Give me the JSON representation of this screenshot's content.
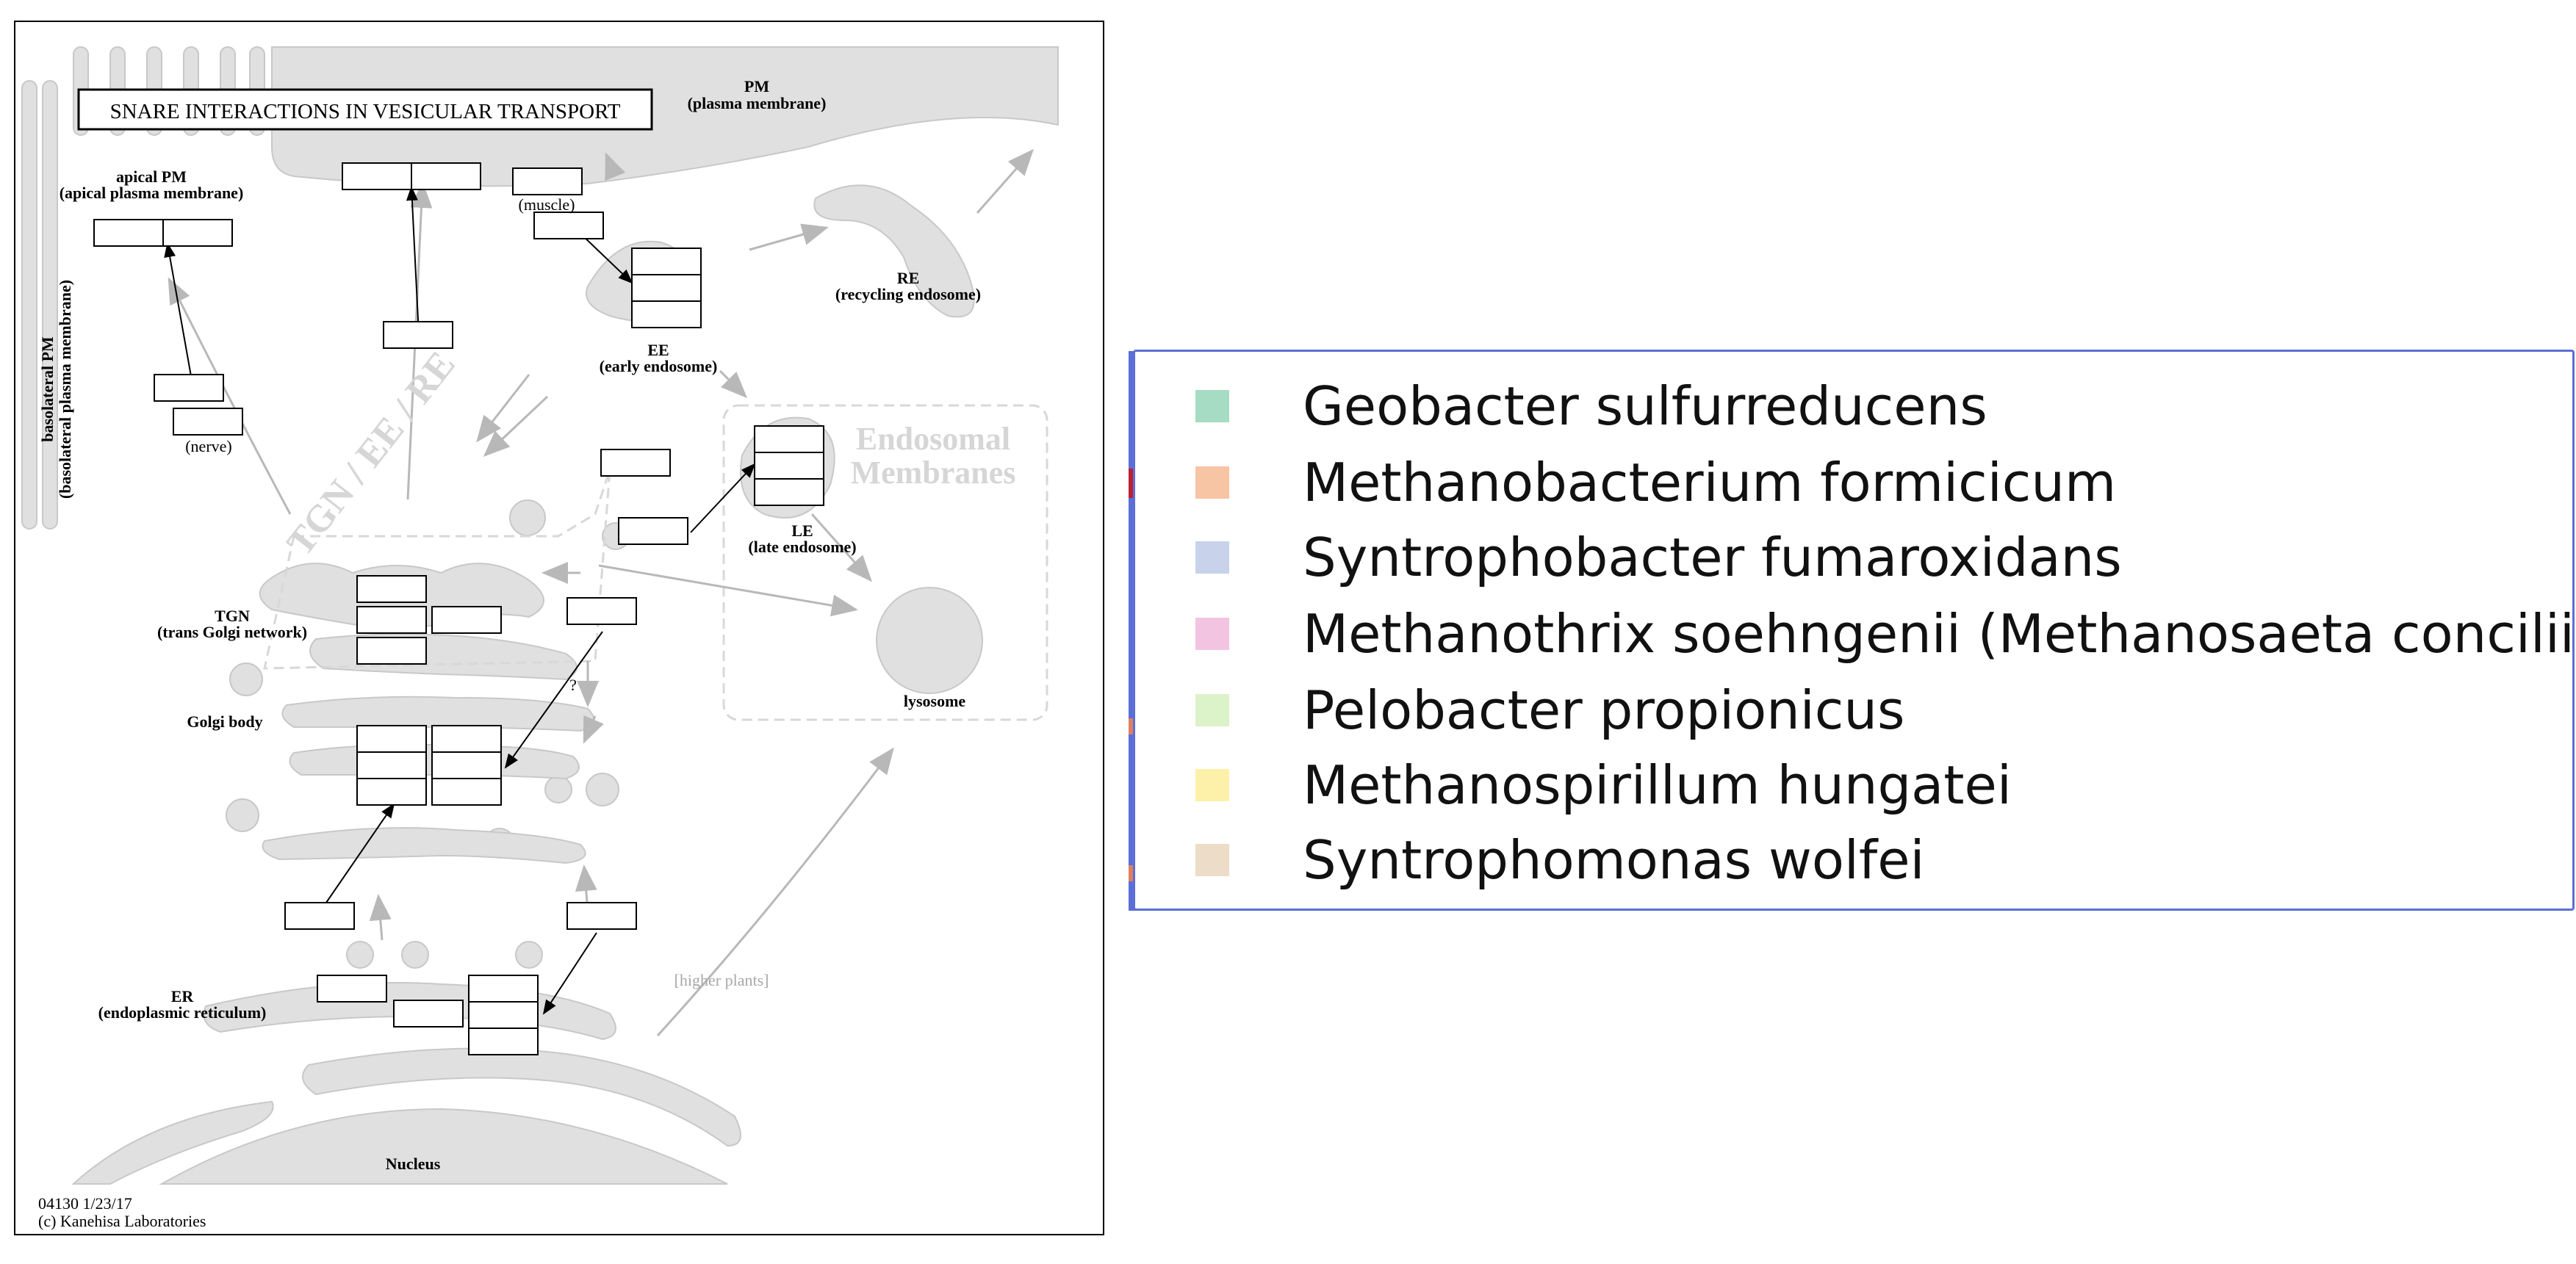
{
  "diagram": {
    "title": "SNARE INTERACTIONS IN VESICULAR TRANSPORT",
    "labels": {
      "pm": "PM",
      "pm_full": "(plasma membrane)",
      "apical": "apical PM",
      "apical_full": "(apical plasma membrane)",
      "basolateral": "basolateral PM",
      "basolateral_full": "(basolateral plasma membrane)",
      "muscle": "(muscle)",
      "nerve": "(nerve)",
      "re": "RE",
      "re_full": "(recycling endosome)",
      "ee": "EE",
      "ee_full": "(early endosome)",
      "le": "LE",
      "le_full": "(late endosome)",
      "lysosome": "lysosome",
      "endosomal1": "Endosomal",
      "endosomal2": "Membranes",
      "tgn_ee_re": "TGN / EE / RE",
      "tgn": "TGN",
      "tgn_full": "(trans Golgi network)",
      "golgi": "Golgi body",
      "question": "?",
      "higher_plants": "[higher plants]",
      "er": "ER",
      "er_full": "(endoplasmic reticulum)",
      "nucleus": "Nucleus",
      "code": "04130 1/23/17",
      "copyright": "(c) Kanehisa Laboratories"
    }
  },
  "legend": {
    "items": [
      {
        "label": "Geobacter sulfurreducens",
        "color": "#a6dcc4"
      },
      {
        "label": "Methanobacterium formicicum",
        "color": "#f7c4a4"
      },
      {
        "label": "Syntrophobacter fumaroxidans",
        "color": "#c8d2ea"
      },
      {
        "label": "Methanothrix soehngenii (Methanosaeta concilii)",
        "color": "#f2c4e2"
      },
      {
        "label": "Pelobacter propionicus",
        "color": "#dcf2c8"
      },
      {
        "label": "Methanospirillum hungatei",
        "color": "#fdf0a8"
      },
      {
        "label": "Syntrophomonas wolfei",
        "color": "#ecdcc8"
      }
    ]
  }
}
